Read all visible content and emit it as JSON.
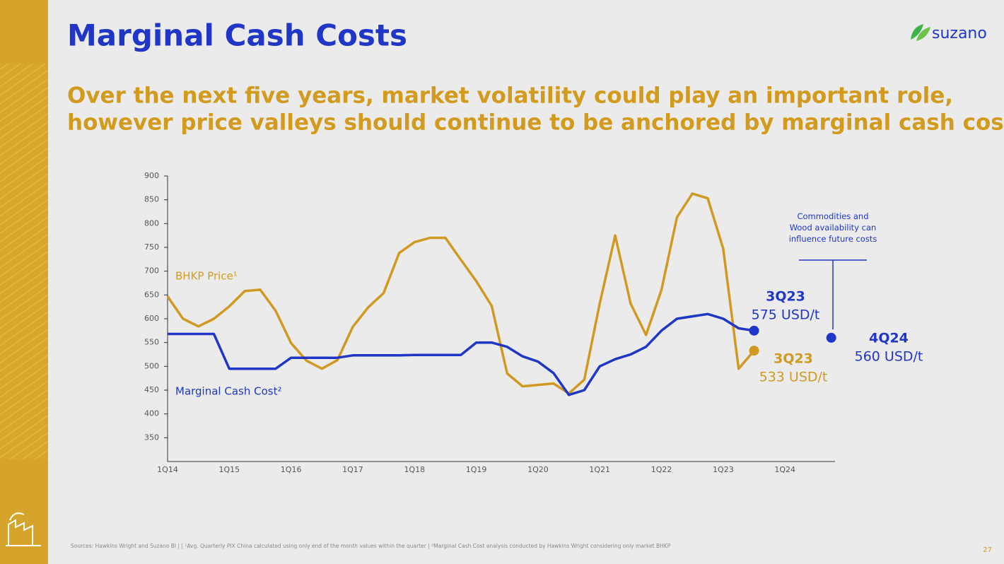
{
  "title": "Marginal Cash Costs",
  "logo": "suzano",
  "subtitle": [
    "Over the next five years, market volatility could play an important role,",
    "however price valleys should continue to be anchored by marginal cash costs"
  ],
  "chart_data": {
    "type": "line",
    "categories": [
      "1Q14",
      null,
      null,
      null,
      "1Q15",
      null,
      null,
      null,
      "1Q16",
      null,
      null,
      null,
      "1Q17",
      null,
      null,
      null,
      "1Q18",
      null,
      null,
      null,
      "1Q19",
      null,
      null,
      null,
      "1Q20",
      null,
      null,
      null,
      "1Q21",
      null,
      null,
      null,
      "1Q22",
      null,
      null,
      null,
      "1Q23",
      null,
      null,
      null,
      "1Q24",
      null,
      null,
      null
    ],
    "series": [
      {
        "name": "BHKP Price¹",
        "color": "#d09a22",
        "values": [
          647,
          600,
          584,
          600,
          626,
          658,
          661,
          617,
          549,
          512,
          495,
          513,
          583,
          624,
          654,
          738,
          761,
          770,
          770,
          724,
          679,
          627,
          485,
          458,
          461,
          464,
          443,
          472,
          632,
          775,
          632,
          566,
          661,
          813,
          863,
          853,
          747,
          495,
          533,
          null,
          null,
          null,
          null,
          null
        ],
        "value_labels": [
          null,
          null,
          null,
          null,
          null,
          null,
          null,
          null,
          null,
          null,
          null,
          null,
          null,
          null,
          null,
          null,
          null,
          null,
          null,
          null,
          null,
          null,
          null,
          null,
          null,
          null,
          null,
          null,
          null,
          null,
          null,
          null,
          null,
          null,
          null,
          null,
          null,
          null,
          "533 USD/t",
          null,
          null,
          null,
          null,
          null
        ]
      },
      {
        "name": "Marginal Cash Cost²",
        "color": "#1f36c7",
        "values": [
          568,
          568,
          568,
          568,
          495,
          495,
          495,
          495,
          518,
          518,
          518,
          518,
          523,
          523,
          523,
          523,
          524,
          524,
          524,
          524,
          550,
          550,
          541,
          521,
          510,
          486,
          440,
          450,
          500,
          515,
          525,
          541,
          575,
          600,
          605,
          610,
          600,
          580,
          575,
          null,
          null,
          null,
          null,
          null
        ],
        "value_labels": [
          null,
          null,
          null,
          null,
          null,
          null,
          null,
          null,
          null,
          null,
          null,
          null,
          null,
          null,
          null,
          null,
          null,
          null,
          null,
          null,
          null,
          null,
          null,
          null,
          null,
          null,
          null,
          null,
          null,
          null,
          null,
          null,
          null,
          null,
          null,
          null,
          null,
          null,
          "575 USD/t",
          null,
          null,
          null,
          null,
          null
        ]
      },
      {
        "color": "#1f36c7",
        "dash": "dotted",
        "values": [
          null,
          null,
          null,
          null,
          null,
          null,
          null,
          null,
          null,
          null,
          null,
          null,
          null,
          null,
          null,
          null,
          null,
          null,
          null,
          null,
          null,
          null,
          null,
          null,
          null,
          null,
          null,
          null,
          null,
          null,
          null,
          null,
          null,
          null,
          null,
          null,
          null,
          null,
          575,
          null,
          null,
          null,
          null,
          560
        ],
        "value_labels": [
          null,
          null,
          null,
          null,
          null,
          null,
          null,
          null,
          null,
          null,
          null,
          null,
          null,
          null,
          null,
          null,
          null,
          null,
          null,
          null,
          null,
          null,
          null,
          null,
          null,
          null,
          null,
          null,
          null,
          null,
          null,
          null,
          null,
          null,
          null,
          null,
          null,
          null,
          null,
          null,
          null,
          null,
          null,
          "560 USD/t"
        ]
      }
    ],
    "annotations": [
      "3Q23",
      "3Q23",
      "4Q24",
      "Commodities and Wood availability can influence future costs"
    ],
    "ylim": [
      300,
      900
    ],
    "yticks": [
      350,
      400,
      450,
      500,
      550,
      600,
      650,
      700,
      750,
      800,
      850,
      900
    ],
    "grid": false
  },
  "footnote": "Sources: Hawkins Wright and Suzano BI | | ¹Avg. Quarterly PIX China calculated using only end of the month values within the quarter | ²Marginal Cash Cost analysis conducted by Hawkins Wright considering only market BHKP",
  "page_number": "27"
}
